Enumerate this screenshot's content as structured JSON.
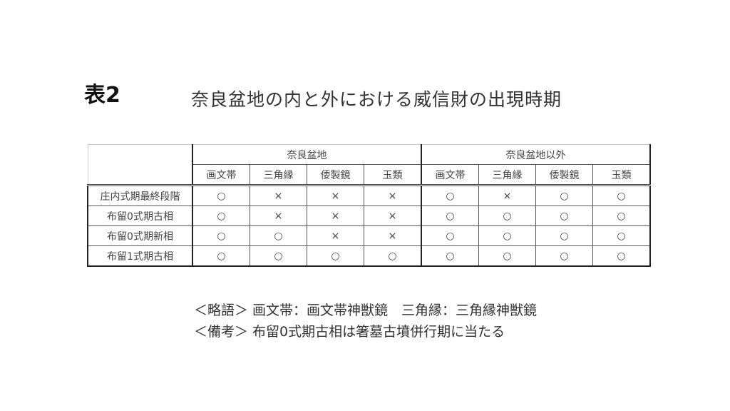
{
  "label": "表2",
  "title": "奈良盆地の内と外における威信財の出現時期",
  "table": {
    "groups": [
      "奈良盆地",
      "奈良盆地以外"
    ],
    "columns": [
      "画文帯",
      "三角縁",
      "倭製鏡",
      "玉類",
      "画文帯",
      "三角縁",
      "倭製鏡",
      "玉類"
    ],
    "rows": [
      {
        "label": "庄内式期最終段階",
        "cells": [
          "○",
          "×",
          "×",
          "×",
          "○",
          "×",
          "○",
          "○"
        ]
      },
      {
        "label": "布留0式期古相",
        "cells": [
          "○",
          "×",
          "×",
          "×",
          "○",
          "○",
          "○",
          "○"
        ]
      },
      {
        "label": "布留0式期新相",
        "cells": [
          "○",
          "○",
          "×",
          "×",
          "○",
          "○",
          "○",
          "○"
        ]
      },
      {
        "label": "布留1式期古相",
        "cells": [
          "○",
          "○",
          "○",
          "○",
          "○",
          "○",
          "○",
          "○"
        ]
      }
    ]
  },
  "notes": [
    "＜略語＞ 画文帯：画文帯神獣鏡　三角縁：三角縁神獣鏡",
    "＜備考＞ 布留0式期古相は箸墓古墳併行期に当たる"
  ]
}
